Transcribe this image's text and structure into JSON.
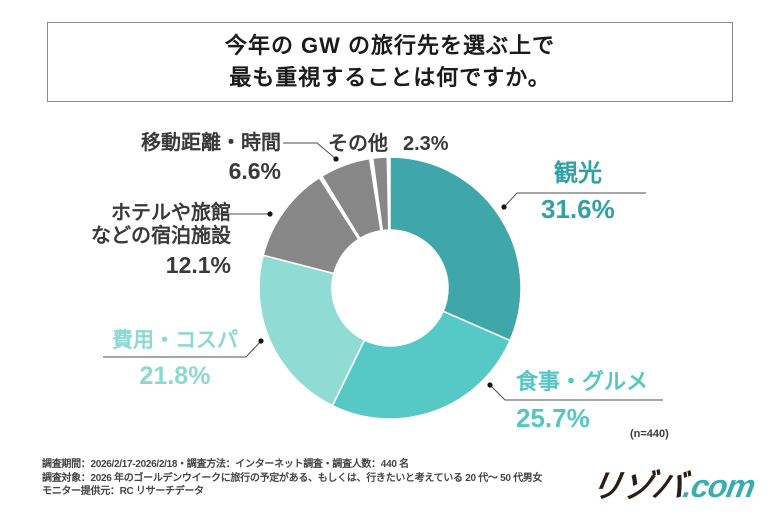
{
  "title": {
    "line1": "今年の GW の旅行先を選ぶ上で",
    "line2": "最も重視することは何ですか。"
  },
  "chart_data": {
    "type": "pie",
    "subtype": "donut",
    "direction": "clockwise",
    "start_angle_deg": 0,
    "title": "今年のGWの旅行先を選ぶ上で最も重視することは何ですか。",
    "sample_size_label": "(n=440)",
    "sample_size": 440,
    "unit": "%",
    "segments": [
      {
        "key": "sightseeing",
        "label": "観光",
        "value": 31.6,
        "pct_label": "31.6%",
        "color": "#3FA7AA",
        "text_color": "#31A1A6"
      },
      {
        "key": "food-gourmet",
        "label": "食事・グルメ",
        "value": 25.7,
        "pct_label": "25.7%",
        "color": "#56C8C5",
        "text_color": "#55C6C3"
      },
      {
        "key": "cost",
        "label": "費用・コスパ",
        "value": 21.8,
        "pct_label": "21.8%",
        "color": "#90DCD5",
        "text_color": "#8BD9D2"
      },
      {
        "key": "accommodation",
        "label": "ホテルや旅館などの宿泊施設",
        "label_lines": [
          "ホテルや旅館",
          "などの宿泊施設"
        ],
        "value": 12.1,
        "pct_label": "12.1%",
        "color": "#878787",
        "text_color": "#3A3A3A"
      },
      {
        "key": "travel-distance-time",
        "label": "移動距離・時間",
        "value": 6.6,
        "pct_label": "6.6%",
        "color": "#878787",
        "text_color": "#3A3A3A"
      },
      {
        "key": "other",
        "label": "その他",
        "value": 2.3,
        "pct_label": "2.3%",
        "color": "#878787",
        "text_color": "#3A3A3A"
      }
    ]
  },
  "footer": {
    "line1": "調査期間：2026/2/17-2026/2/18・調査方法：インターネット調査・調査人数：440 名",
    "line2": "調査対象：2026 年のゴールデンウイークに旅行の予定がある、もしくは、行きたいと考えている 20 代～ 50 代男女",
    "line3": "モニター提供元：RC リサーチデータ"
  },
  "logo": {
    "main": "リゾバ",
    "suffix": ".com",
    "main_color": "#2B1D15",
    "suffix_color": "#39AEB2"
  }
}
